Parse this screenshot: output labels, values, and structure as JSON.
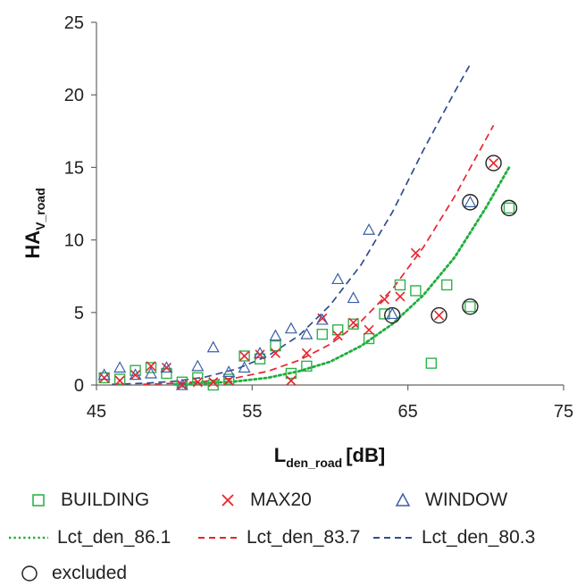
{
  "chart_data": {
    "type": "scatter",
    "xlabel": "L",
    "xlabel_sub": "den_road",
    "xlabel_unit": "[dB]",
    "ylabel": "HA",
    "ylabel_sub": "V_road",
    "xlim": [
      45,
      75
    ],
    "ylim": [
      0,
      25
    ],
    "xticks": [
      45,
      55,
      65,
      75
    ],
    "yticks": [
      0,
      5,
      10,
      15,
      20,
      25
    ],
    "grid": false,
    "legend_position": "bottom",
    "series": [
      {
        "name": "BUILDING",
        "kind": "scatter",
        "marker": "square",
        "color": "#2db34a",
        "points": [
          [
            45.5,
            0.5
          ],
          [
            46.5,
            0.4
          ],
          [
            47.5,
            1.0
          ],
          [
            48.5,
            1.2
          ],
          [
            49.5,
            0.8
          ],
          [
            50.5,
            0.2
          ],
          [
            51.5,
            0.5
          ],
          [
            52.5,
            0.0
          ],
          [
            53.5,
            0.4
          ],
          [
            54.5,
            2.0
          ],
          [
            55.5,
            1.8
          ],
          [
            56.5,
            2.7
          ],
          [
            57.5,
            0.8
          ],
          [
            58.5,
            1.3
          ],
          [
            59.5,
            3.5
          ],
          [
            60.5,
            3.8
          ],
          [
            61.5,
            4.2
          ],
          [
            62.5,
            3.2
          ],
          [
            63.5,
            4.9
          ],
          [
            64.5,
            6.9
          ],
          [
            65.5,
            6.5
          ],
          [
            66.5,
            1.5
          ],
          [
            67.5,
            6.9
          ],
          [
            69.0,
            5.4
          ],
          [
            71.5,
            12.2
          ]
        ]
      },
      {
        "name": "MAX20",
        "kind": "scatter",
        "marker": "cross",
        "color": "#e8242c",
        "points": [
          [
            45.5,
            0.5
          ],
          [
            46.5,
            0.3
          ],
          [
            47.5,
            0.7
          ],
          [
            48.5,
            1.3
          ],
          [
            49.5,
            1.2
          ],
          [
            50.5,
            0.0
          ],
          [
            51.5,
            0.2
          ],
          [
            52.5,
            0.2
          ],
          [
            53.5,
            0.3
          ],
          [
            54.5,
            2.0
          ],
          [
            55.5,
            2.1
          ],
          [
            56.5,
            2.2
          ],
          [
            57.5,
            0.3
          ],
          [
            58.5,
            2.2
          ],
          [
            59.5,
            4.6
          ],
          [
            60.5,
            3.4
          ],
          [
            61.5,
            4.3
          ],
          [
            62.5,
            3.8
          ],
          [
            63.5,
            5.9
          ],
          [
            64.5,
            6.1
          ],
          [
            65.5,
            9.1
          ],
          [
            67.0,
            4.8
          ],
          [
            70.5,
            15.3
          ]
        ]
      },
      {
        "name": "WINDOW",
        "kind": "scatter",
        "marker": "triangle",
        "color": "#3b5ea6",
        "points": [
          [
            45.5,
            0.7
          ],
          [
            46.5,
            1.2
          ],
          [
            47.5,
            0.7
          ],
          [
            48.5,
            0.8
          ],
          [
            49.5,
            1.2
          ],
          [
            50.5,
            0.0
          ],
          [
            51.5,
            1.3
          ],
          [
            52.5,
            2.6
          ],
          [
            53.5,
            0.9
          ],
          [
            54.5,
            1.2
          ],
          [
            55.5,
            2.2
          ],
          [
            56.5,
            3.4
          ],
          [
            57.5,
            3.9
          ],
          [
            58.5,
            3.5
          ],
          [
            59.5,
            4.5
          ],
          [
            60.5,
            7.3
          ],
          [
            61.5,
            6.0
          ],
          [
            62.5,
            10.7
          ],
          [
            64.0,
            4.9
          ],
          [
            69.0,
            12.6
          ]
        ]
      },
      {
        "name": "Lct_den_86.1",
        "kind": "line",
        "style": "dotted",
        "color": "#1fae3c",
        "points": [
          [
            50,
            0.05
          ],
          [
            52,
            0.12
          ],
          [
            54,
            0.25
          ],
          [
            56,
            0.5
          ],
          [
            58,
            0.95
          ],
          [
            60,
            1.6
          ],
          [
            62,
            2.7
          ],
          [
            64,
            4.2
          ],
          [
            66,
            6.2
          ],
          [
            68,
            8.8
          ],
          [
            70,
            12.2
          ],
          [
            71.5,
            15.0
          ]
        ]
      },
      {
        "name": "Lct_den_83.7",
        "kind": "line",
        "style": "dashed",
        "color": "#e8242c",
        "points": [
          [
            48,
            0.05
          ],
          [
            50,
            0.12
          ],
          [
            52,
            0.25
          ],
          [
            54,
            0.5
          ],
          [
            56,
            0.95
          ],
          [
            58,
            1.7
          ],
          [
            60,
            2.8
          ],
          [
            62,
            4.4
          ],
          [
            64,
            6.6
          ],
          [
            66,
            9.5
          ],
          [
            68,
            13.0
          ],
          [
            70.5,
            17.9
          ]
        ]
      },
      {
        "name": "Lct_den_80.3",
        "kind": "line",
        "style": "dashed",
        "color": "#2f4e8c",
        "points": [
          [
            46,
            0.05
          ],
          [
            48,
            0.12
          ],
          [
            50,
            0.25
          ],
          [
            52,
            0.55
          ],
          [
            54,
            1.1
          ],
          [
            56,
            2.0
          ],
          [
            58,
            3.4
          ],
          [
            60,
            5.5
          ],
          [
            62,
            8.3
          ],
          [
            64,
            11.9
          ],
          [
            66,
            16.2
          ],
          [
            68,
            20.2
          ],
          [
            69,
            22.1
          ]
        ]
      },
      {
        "name": "excluded",
        "kind": "scatter",
        "marker": "circle",
        "color": "#222222",
        "points": [
          [
            64.0,
            4.8
          ],
          [
            67.0,
            4.8
          ],
          [
            69.0,
            5.4
          ],
          [
            69.0,
            12.6
          ],
          [
            70.5,
            15.3
          ],
          [
            71.5,
            12.2
          ]
        ]
      }
    ]
  }
}
